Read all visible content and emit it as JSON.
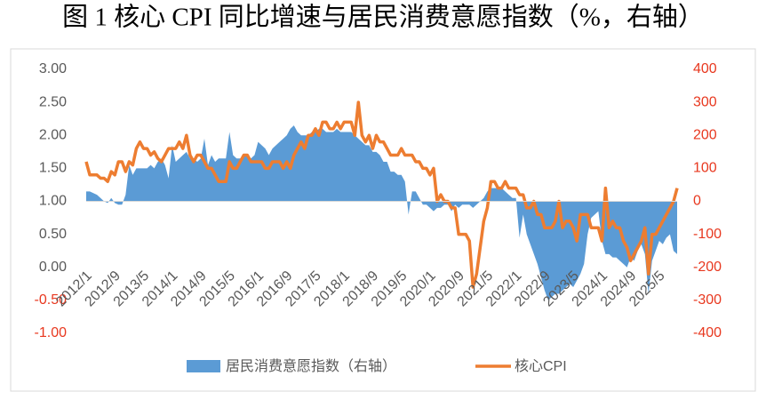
{
  "chart_data": {
    "type": "combo",
    "title": "图 1 核心 CPI 同比增速与居民消费意愿指数（%，右轴）",
    "categories": [
      "2012/1",
      null,
      null,
      null,
      null,
      null,
      null,
      null,
      "2012/9",
      null,
      null,
      null,
      null,
      null,
      null,
      null,
      "2013/5",
      null,
      null,
      null,
      null,
      null,
      null,
      null,
      "2014/1",
      null,
      null,
      null,
      null,
      null,
      null,
      null,
      "2014/9",
      null,
      null,
      null,
      null,
      null,
      null,
      null,
      "2015/5",
      null,
      null,
      null,
      null,
      null,
      null,
      null,
      "2016/1",
      null,
      null,
      null,
      null,
      null,
      null,
      null,
      "2016/9",
      null,
      null,
      null,
      null,
      null,
      null,
      null,
      "2017/5",
      null,
      null,
      null,
      null,
      null,
      null,
      null,
      "2018/1",
      null,
      null,
      null,
      null,
      null,
      null,
      null,
      "2018/9",
      null,
      null,
      null,
      null,
      null,
      null,
      null,
      "2019/5",
      null,
      null,
      null,
      null,
      null,
      null,
      null,
      "2020/1",
      null,
      null,
      null,
      null,
      null,
      null,
      null,
      "2020/9",
      null,
      null,
      null,
      null,
      null,
      null,
      null,
      "2021/5",
      null,
      null,
      null,
      null,
      null,
      null,
      null,
      "2022/1",
      null,
      null,
      null,
      null,
      null,
      null,
      null,
      "2022/9",
      null,
      null,
      null,
      null,
      null,
      null,
      null,
      "2023/5",
      null,
      null,
      null,
      null,
      null,
      null,
      null,
      "2024/1",
      null,
      null,
      null,
      null,
      null,
      null,
      null,
      "2024/9",
      null,
      null,
      null,
      null,
      null,
      null,
      null,
      "2025/5",
      null,
      null,
      null,
      null,
      null
    ],
    "series": [
      {
        "name": "居民消费意愿指数（右轴）",
        "type": "area",
        "axis": "y2",
        "color": "#5b9bd5",
        "values": [
          30,
          30,
          25,
          20,
          10,
          0,
          -5,
          10,
          -5,
          -10,
          -10,
          20,
          110,
          80,
          100,
          100,
          100,
          100,
          110,
          100,
          120,
          130,
          110,
          70,
          170,
          120,
          130,
          140,
          150,
          130,
          130,
          120,
          130,
          190,
          110,
          140,
          120,
          130,
          130,
          130,
          210,
          140,
          130,
          130,
          140,
          140,
          130,
          140,
          180,
          170,
          160,
          140,
          160,
          170,
          180,
          190,
          200,
          220,
          230,
          210,
          200,
          200,
          200,
          210,
          210,
          220,
          220,
          210,
          210,
          210,
          220,
          210,
          210,
          210,
          210,
          200,
          190,
          180,
          170,
          170,
          150,
          150,
          140,
          120,
          120,
          90,
          90,
          80,
          80,
          60,
          -40,
          30,
          30,
          10,
          -10,
          -10,
          -20,
          -30,
          -20,
          -20,
          -10,
          -10,
          -30,
          -10,
          -20,
          -10,
          -10,
          -10,
          -20,
          -10,
          0,
          10,
          30,
          40,
          40,
          40,
          40,
          30,
          20,
          10,
          10,
          -110,
          -40,
          -100,
          -130,
          -160,
          -190,
          -230,
          -270,
          -300,
          -290,
          -280,
          -280,
          -270,
          -260,
          -250,
          -260,
          -240,
          -220,
          -190,
          -100,
          -50,
          -40,
          -30,
          -120,
          -160,
          -160,
          -170,
          -170,
          -180,
          -190,
          -200,
          -170,
          -180,
          -150,
          -130,
          -160,
          -280,
          -180,
          -150,
          -120,
          -130,
          -110,
          -100,
          -150,
          -160
        ]
      },
      {
        "name": "核心CPI",
        "type": "line",
        "color": "#ed7d31",
        "values": [
          1.6,
          1.4,
          1.4,
          1.4,
          1.35,
          1.35,
          1.3,
          1.45,
          1.4,
          1.6,
          1.6,
          1.45,
          1.6,
          1.55,
          1.8,
          1.9,
          1.8,
          1.8,
          1.7,
          1.75,
          1.65,
          1.6,
          1.7,
          1.8,
          1.8,
          1.8,
          1.9,
          1.8,
          2.0,
          1.7,
          1.6,
          1.7,
          1.7,
          1.6,
          1.5,
          1.5,
          1.4,
          1.3,
          1.3,
          1.3,
          1.6,
          1.5,
          1.5,
          1.6,
          1.7,
          1.7,
          1.6,
          1.6,
          1.6,
          1.6,
          1.5,
          1.5,
          1.6,
          1.6,
          1.6,
          1.5,
          1.6,
          1.5,
          1.7,
          1.8,
          1.9,
          1.8,
          2.0,
          2.0,
          2.1,
          2.0,
          2.2,
          2.2,
          2.1,
          2.1,
          2.2,
          2.1,
          2.2,
          2.2,
          2.2,
          2.0,
          2.5,
          2.0,
          1.9,
          2.0,
          1.8,
          2.0,
          1.9,
          1.9,
          1.8,
          1.7,
          1.7,
          1.7,
          1.8,
          1.7,
          1.7,
          1.7,
          1.6,
          1.6,
          1.5,
          1.5,
          1.4,
          1.5,
          1.0,
          1.1,
          1.0,
          1.0,
          0.9,
          0.9,
          0.5,
          0.5,
          0.5,
          0.4,
          -0.3,
          -0.1,
          0.3,
          0.7,
          0.9,
          1.3,
          1.3,
          1.2,
          1.2,
          1.3,
          1.2,
          1.2,
          1.2,
          1.1,
          1.1,
          0.9,
          0.9,
          1.0,
          0.8,
          0.8,
          0.6,
          0.6,
          0.6,
          0.7,
          1.0,
          0.6,
          0.7,
          0.7,
          0.6,
          0.4,
          0.8,
          0.8,
          0.8,
          0.6,
          0.6,
          0.6,
          0.4,
          1.2,
          0.6,
          0.7,
          0.6,
          0.6,
          0.4,
          0.3,
          0.1,
          0.2,
          0.3,
          0.4,
          0.6,
          -0.1,
          0.5,
          0.5,
          0.6,
          0.7,
          0.8,
          0.9,
          1.0,
          1.2
        ]
      }
    ],
    "ylim": [
      -1,
      3
    ],
    "yticks": [
      {
        "value": 3,
        "label": "3.00"
      },
      {
        "value": 2.5,
        "label": "2.50"
      },
      {
        "value": 2,
        "label": "2.00"
      },
      {
        "value": 1.5,
        "label": "1.50"
      },
      {
        "value": 1,
        "label": "1.00"
      },
      {
        "value": 0.5,
        "label": "0.50"
      },
      {
        "value": 0,
        "label": "0.00"
      },
      {
        "value": -0.5,
        "label": "-0.50"
      },
      {
        "value": -1,
        "label": "-1.00"
      }
    ],
    "y2lim": [
      -400,
      400
    ],
    "y2ticks": [
      400,
      300,
      200,
      100,
      0,
      -100,
      -200,
      -300,
      -400
    ],
    "y2_tick_color": "#e8381f",
    "negative_tick_color": "#e8381f",
    "legend": "bottom"
  }
}
